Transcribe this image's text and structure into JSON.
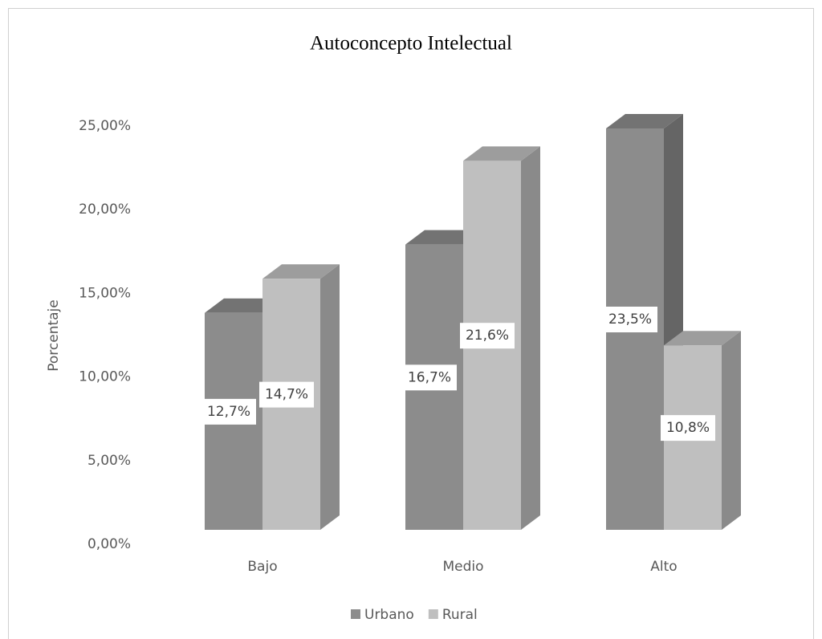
{
  "chart_data": {
    "type": "bar3d",
    "title": "Autoconcepto  Intelectual",
    "y_label": "Porcentaje",
    "categories": [
      "Bajo",
      "Medio",
      "Alto"
    ],
    "series": [
      {
        "name": "Urbano",
        "color": "#8c8c8c",
        "values": [
          12.7,
          16.7,
          23.5
        ],
        "value_labels": [
          "12,7%",
          "16,7%",
          "23,5%"
        ]
      },
      {
        "name": "Rural",
        "color": "#bfbfbf",
        "values": [
          14.7,
          21.6,
          10.8
        ],
        "value_labels": [
          "14,7%",
          "21,6%",
          "10,8%"
        ]
      }
    ],
    "ylim": [
      0,
      25
    ],
    "yticks": [
      {
        "value": 0,
        "label": "0,00%"
      },
      {
        "value": 5,
        "label": "5,00%"
      },
      {
        "value": 10,
        "label": "10,00%"
      },
      {
        "value": 15,
        "label": "15,00%"
      },
      {
        "value": 20,
        "label": "20,00%"
      },
      {
        "value": 25,
        "label": "25,00%"
      }
    ],
    "legend": "bottom"
  }
}
